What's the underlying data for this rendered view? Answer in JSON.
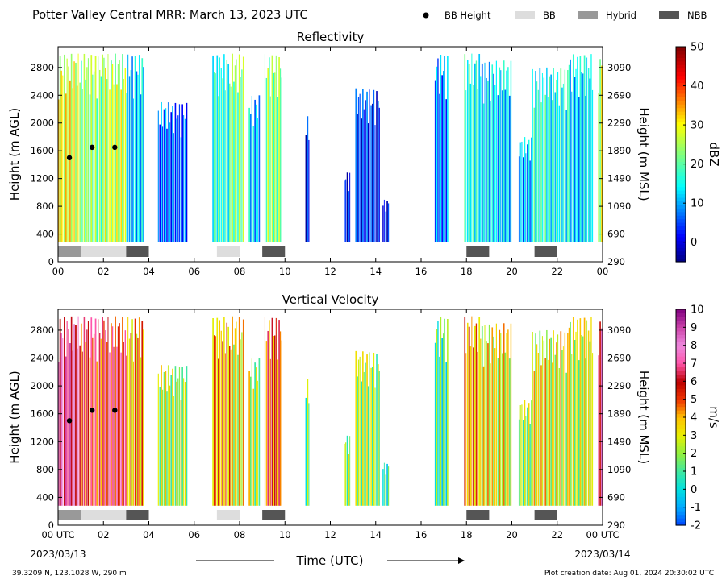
{
  "header": {
    "title": "Potter Valley Central MRR:  March 13, 2023 UTC",
    "legend": [
      {
        "label": "BB Height",
        "kind": "dot",
        "color": "#000000"
      },
      {
        "label": "BB",
        "kind": "box",
        "color": "#dddddd"
      },
      {
        "label": "Hybrid",
        "kind": "box",
        "color": "#999999"
      },
      {
        "label": "NBB",
        "kind": "box",
        "color": "#555555"
      }
    ]
  },
  "footer": {
    "location": "39.3209 N, 123.1028 W, 290 m",
    "created": "Plot creation date: Aug 01, 2024 20:30:02 UTC",
    "xlabel": "Time (UTC)",
    "date_start": "2023/03/13",
    "date_end": "2023/03/14"
  },
  "chart_data": [
    {
      "type": "heatmap",
      "title": "Reflectivity",
      "ylabel": "Height (m AGL)",
      "ylabel_right": "Height (m MSL)",
      "xlim": [
        0,
        24
      ],
      "ylim": [
        0,
        3100
      ],
      "x_ticks": [
        "00",
        "02",
        "04",
        "06",
        "08",
        "10",
        "12",
        "14",
        "16",
        "18",
        "20",
        "22",
        "00"
      ],
      "y_ticks": [
        0,
        400,
        800,
        1200,
        1600,
        2000,
        2400,
        2800
      ],
      "y_ticks_right": [
        290,
        690,
        1090,
        1490,
        1890,
        2290,
        2690,
        3090
      ],
      "colorbar": {
        "label": "dBZ",
        "min": -5,
        "max": 50,
        "ticks": [
          0,
          10,
          20,
          30,
          40,
          50
        ]
      },
      "bb_height": [
        {
          "t": 0.5,
          "h": 1500
        },
        {
          "t": 1.5,
          "h": 1650
        },
        {
          "t": 2.5,
          "h": 1650
        }
      ],
      "bb_periods": [
        {
          "start": 0.0,
          "end": 1.0,
          "class": "Hybrid"
        },
        {
          "start": 1.0,
          "end": 3.0,
          "class": "BB"
        },
        {
          "start": 3.0,
          "end": 4.0,
          "class": "NBB"
        },
        {
          "start": 7.0,
          "end": 8.0,
          "class": "BB"
        },
        {
          "start": 9.0,
          "end": 10.0,
          "class": "NBB"
        },
        {
          "start": 18.0,
          "end": 19.0,
          "class": "NBB"
        },
        {
          "start": 21.0,
          "end": 22.0,
          "class": "NBB"
        }
      ],
      "echo_periods": [
        {
          "start": 0.0,
          "end": 1.0,
          "v": 29,
          "top": 3000
        },
        {
          "start": 1.0,
          "end": 2.0,
          "v": 22,
          "top": 3000
        },
        {
          "start": 2.0,
          "end": 3.0,
          "v": 26,
          "top": 3000
        },
        {
          "start": 3.0,
          "end": 3.8,
          "v": 12,
          "top": 3000
        },
        {
          "start": 4.4,
          "end": 5.7,
          "v": 7,
          "top": 2300
        },
        {
          "start": 6.8,
          "end": 7.6,
          "v": 18,
          "top": 3000
        },
        {
          "start": 7.6,
          "end": 8.2,
          "v": 22,
          "top": 3000
        },
        {
          "start": 8.4,
          "end": 8.9,
          "v": 12,
          "top": 2400
        },
        {
          "start": 9.1,
          "end": 9.9,
          "v": 22,
          "top": 3000
        },
        {
          "start": 10.9,
          "end": 11.1,
          "v": 2,
          "top": 2100
        },
        {
          "start": 12.6,
          "end": 12.9,
          "v": 2,
          "top": 1300
        },
        {
          "start": 13.1,
          "end": 14.2,
          "v": 3,
          "top": 2500
        },
        {
          "start": 14.3,
          "end": 14.6,
          "v": 3,
          "top": 900
        },
        {
          "start": 16.6,
          "end": 17.2,
          "v": 8,
          "top": 3000
        },
        {
          "start": 17.9,
          "end": 18.6,
          "v": 17,
          "top": 3000
        },
        {
          "start": 18.6,
          "end": 20.0,
          "v": 12,
          "top": 2900
        },
        {
          "start": 20.3,
          "end": 20.9,
          "v": 10,
          "top": 1800
        },
        {
          "start": 20.9,
          "end": 22.5,
          "v": 16,
          "top": 2800
        },
        {
          "start": 22.5,
          "end": 23.6,
          "v": 12,
          "top": 3000
        },
        {
          "start": 23.8,
          "end": 24.0,
          "v": 26,
          "top": 3000
        }
      ]
    },
    {
      "type": "heatmap",
      "title": "Vertical Velocity",
      "ylabel": "Height (m AGL)",
      "ylabel_right": "Height (m MSL)",
      "xlim": [
        0,
        24
      ],
      "ylim": [
        0,
        3100
      ],
      "x_ticks": [
        "00 UTC",
        "02",
        "04",
        "06",
        "08",
        "10",
        "12",
        "14",
        "16",
        "18",
        "20",
        "22",
        "00 UTC"
      ],
      "y_ticks": [
        0,
        400,
        800,
        1200,
        1600,
        2000,
        2400,
        2800
      ],
      "y_ticks_right": [
        290,
        690,
        1090,
        1490,
        1890,
        2290,
        2690,
        3090
      ],
      "colorbar": {
        "label": "m/s",
        "min": -2,
        "max": 10,
        "ticks": [
          -2,
          -1,
          0,
          1,
          2,
          3,
          4,
          5,
          6,
          7,
          8,
          9,
          10
        ]
      },
      "bb_height": [
        {
          "t": 0.5,
          "h": 1500
        },
        {
          "t": 1.5,
          "h": 1650
        },
        {
          "t": 2.5,
          "h": 1650
        }
      ],
      "bb_periods": [
        {
          "start": 0.0,
          "end": 1.0,
          "class": "Hybrid"
        },
        {
          "start": 1.0,
          "end": 3.0,
          "class": "BB"
        },
        {
          "start": 3.0,
          "end": 4.0,
          "class": "NBB"
        },
        {
          "start": 7.0,
          "end": 8.0,
          "class": "BB"
        },
        {
          "start": 9.0,
          "end": 10.0,
          "class": "NBB"
        },
        {
          "start": 18.0,
          "end": 19.0,
          "class": "NBB"
        },
        {
          "start": 21.0,
          "end": 22.0,
          "class": "NBB"
        }
      ],
      "echo_periods": [
        {
          "start": 0.0,
          "end": 1.0,
          "v": 7.5,
          "top": 3000
        },
        {
          "start": 1.0,
          "end": 2.0,
          "v": 5.5,
          "top": 3000
        },
        {
          "start": 2.0,
          "end": 3.0,
          "v": 6,
          "top": 3000
        },
        {
          "start": 3.0,
          "end": 3.8,
          "v": 4,
          "top": 3000
        },
        {
          "start": 4.4,
          "end": 5.7,
          "v": 2.5,
          "top": 2300
        },
        {
          "start": 6.8,
          "end": 7.6,
          "v": 4.5,
          "top": 3000
        },
        {
          "start": 7.6,
          "end": 8.2,
          "v": 3,
          "top": 3000
        },
        {
          "start": 8.4,
          "end": 8.9,
          "v": 2.5,
          "top": 2400
        },
        {
          "start": 9.1,
          "end": 9.9,
          "v": 5,
          "top": 3000
        },
        {
          "start": 10.9,
          "end": 11.1,
          "v": 1.5,
          "top": 2100
        },
        {
          "start": 12.6,
          "end": 12.9,
          "v": 2,
          "top": 1300
        },
        {
          "start": 13.1,
          "end": 14.2,
          "v": 2,
          "top": 2500
        },
        {
          "start": 14.3,
          "end": 14.6,
          "v": 1,
          "top": 900
        },
        {
          "start": 16.6,
          "end": 17.2,
          "v": 1,
          "top": 3000
        },
        {
          "start": 17.9,
          "end": 18.6,
          "v": 4.5,
          "top": 3000
        },
        {
          "start": 18.6,
          "end": 20.0,
          "v": 3,
          "top": 2900
        },
        {
          "start": 20.3,
          "end": 20.9,
          "v": 2,
          "top": 1800
        },
        {
          "start": 20.9,
          "end": 22.5,
          "v": 3,
          "top": 2800
        },
        {
          "start": 22.5,
          "end": 23.6,
          "v": 2.5,
          "top": 3000
        },
        {
          "start": 23.8,
          "end": 24.0,
          "v": 7,
          "top": 3000
        }
      ]
    }
  ]
}
